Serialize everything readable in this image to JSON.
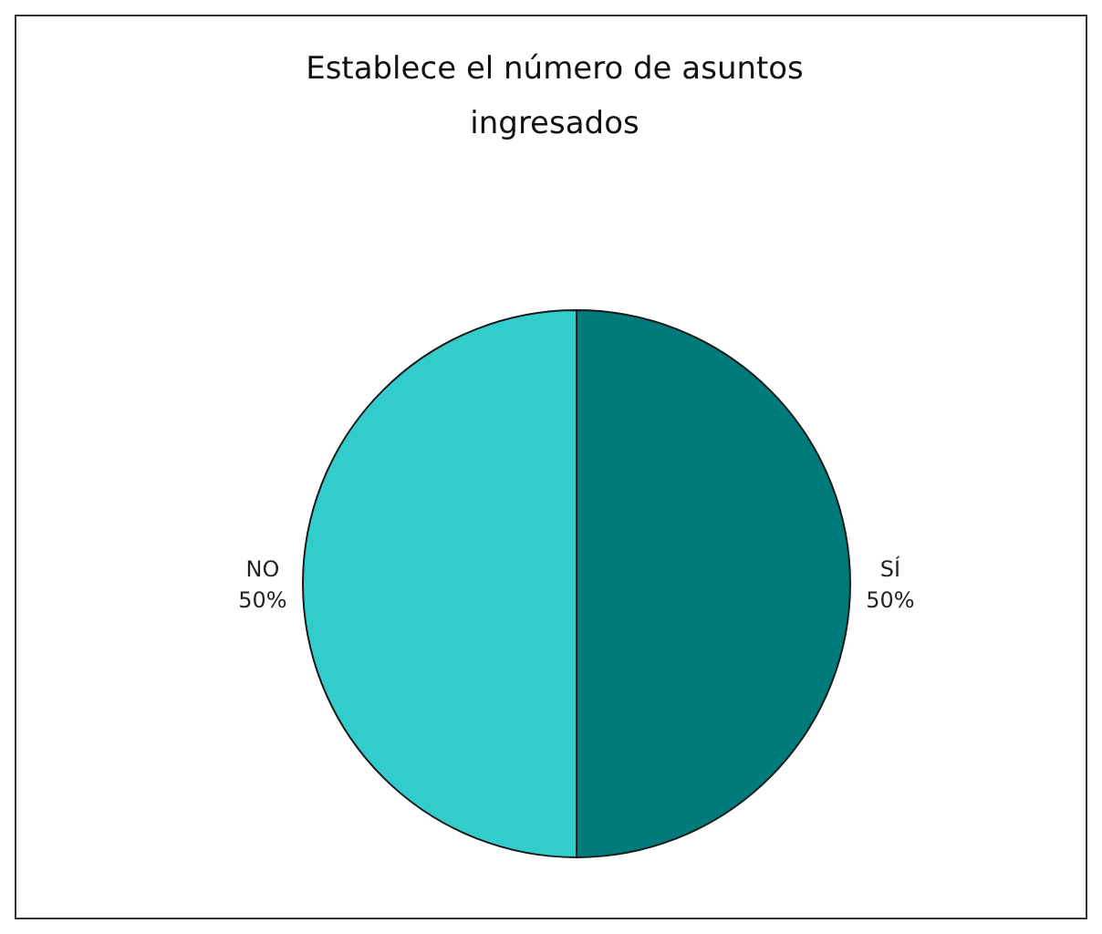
{
  "chart_data": {
    "type": "pie",
    "title": "Establece el número de asuntos ingresados",
    "categories": [
      "SÍ",
      "NO"
    ],
    "values": [
      50,
      50
    ],
    "colors": [
      "#007b7b",
      "#33cccc"
    ],
    "value_labels": [
      "50%",
      "50%"
    ]
  }
}
